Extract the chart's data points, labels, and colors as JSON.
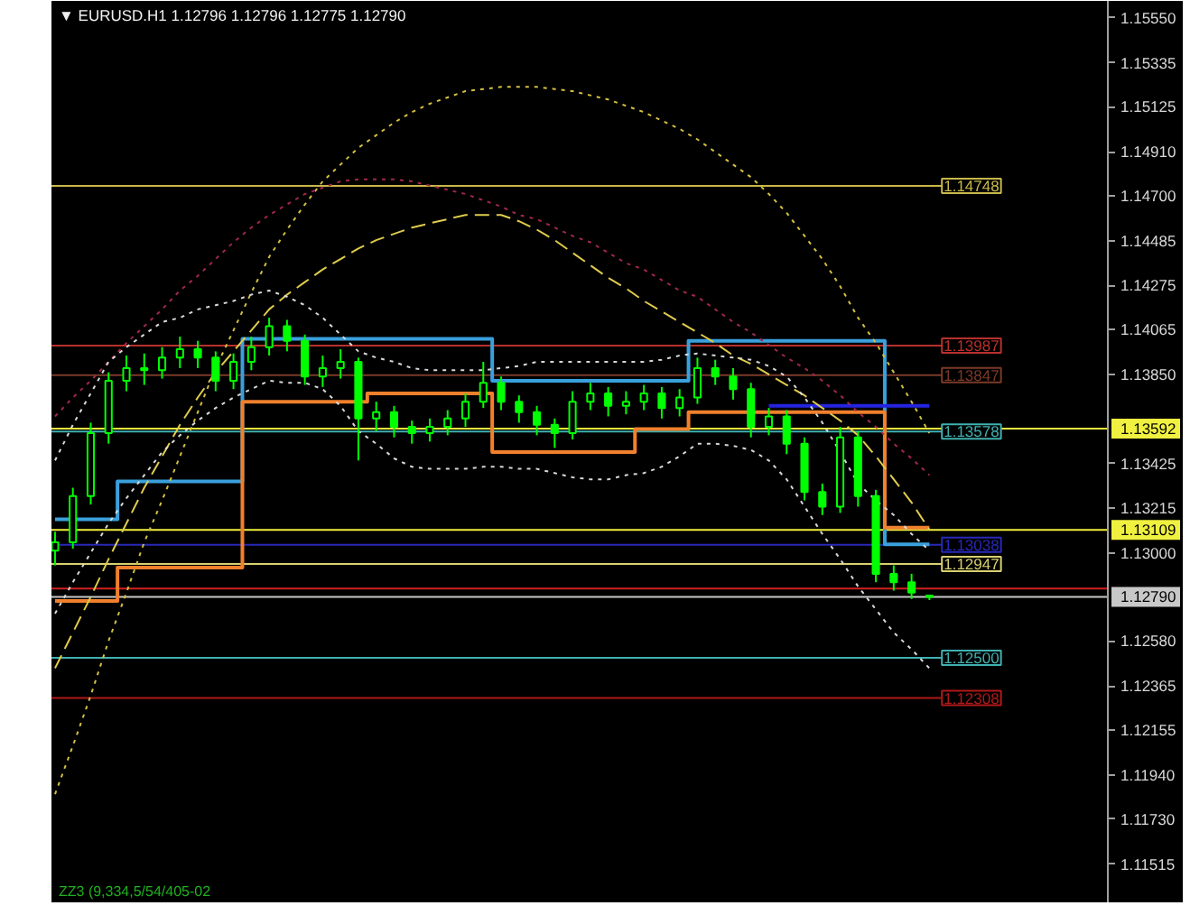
{
  "chart_data": {
    "type": "candlestick",
    "title": "▼ EURUSD.H1  1.12796 1.12796 1.12775 1.12790",
    "color": "#00ff00",
    "categories": [
      null,
      null,
      null,
      null,
      null,
      null,
      null,
      null,
      null,
      null,
      null,
      null,
      null,
      null,
      null,
      null,
      null,
      null,
      null,
      null,
      null,
      null,
      null,
      null,
      null,
      null,
      null,
      null,
      null,
      null,
      null,
      null,
      null,
      null,
      null,
      null,
      null,
      null,
      null,
      null,
      null,
      null,
      null,
      null,
      null,
      null,
      null,
      null,
      null,
      null
    ],
    "ohlc": [
      [
        1.1301,
        1.131,
        1.1294,
        1.1305
      ],
      [
        1.1305,
        1.1331,
        1.1302,
        1.1327
      ],
      [
        1.1327,
        1.1362,
        1.1323,
        1.1357
      ],
      [
        1.1357,
        1.1386,
        1.1352,
        1.1382
      ],
      [
        1.1382,
        1.1394,
        1.1377,
        1.1388
      ],
      [
        1.1388,
        1.1395,
        1.138,
        1.1387
      ],
      [
        1.1387,
        1.1398,
        1.1383,
        1.1393
      ],
      [
        1.1393,
        1.1403,
        1.1388,
        1.1397
      ],
      [
        1.1397,
        1.1401,
        1.1388,
        1.1393
      ],
      [
        1.1393,
        1.1396,
        1.1377,
        1.1382
      ],
      [
        1.1382,
        1.1395,
        1.1378,
        1.1391
      ],
      [
        1.1391,
        1.1403,
        1.1387,
        1.1398
      ],
      [
        1.1398,
        1.1412,
        1.1394,
        1.1408
      ],
      [
        1.1408,
        1.1411,
        1.1396,
        1.1401
      ],
      [
        1.1401,
        1.1404,
        1.138,
        1.1384
      ],
      [
        1.1384,
        1.1394,
        1.1379,
        1.1388
      ],
      [
        1.1388,
        1.1397,
        1.1383,
        1.1391
      ],
      [
        1.1391,
        1.1393,
        1.1344,
        1.1364
      ],
      [
        1.1364,
        1.1372,
        1.1358,
        1.1367
      ],
      [
        1.1367,
        1.137,
        1.1355,
        1.136
      ],
      [
        1.136,
        1.1363,
        1.1352,
        1.1357
      ],
      [
        1.1357,
        1.1364,
        1.1353,
        1.136
      ],
      [
        1.136,
        1.1368,
        1.1356,
        1.1364
      ],
      [
        1.1364,
        1.1376,
        1.136,
        1.1372
      ],
      [
        1.1372,
        1.1391,
        1.1369,
        1.1381
      ],
      [
        1.1381,
        1.1384,
        1.1368,
        1.1372
      ],
      [
        1.1372,
        1.1375,
        1.1362,
        1.1367
      ],
      [
        1.1367,
        1.137,
        1.1356,
        1.1361
      ],
      [
        1.1361,
        1.1364,
        1.135,
        1.1357
      ],
      [
        1.1357,
        1.1377,
        1.1354,
        1.1372
      ],
      [
        1.1372,
        1.1381,
        1.1368,
        1.1376
      ],
      [
        1.1376,
        1.1379,
        1.1365,
        1.137
      ],
      [
        1.137,
        1.1377,
        1.1366,
        1.1372
      ],
      [
        1.1372,
        1.138,
        1.1368,
        1.1376
      ],
      [
        1.1376,
        1.1379,
        1.1364,
        1.1369
      ],
      [
        1.1369,
        1.1378,
        1.1365,
        1.1374
      ],
      [
        1.1374,
        1.1393,
        1.1371,
        1.1388
      ],
      [
        1.1388,
        1.1392,
        1.138,
        1.1384
      ],
      [
        1.1384,
        1.1388,
        1.1373,
        1.1378
      ],
      [
        1.1378,
        1.1381,
        1.1355,
        1.136
      ],
      [
        1.136,
        1.1369,
        1.1356,
        1.1365
      ],
      [
        1.1365,
        1.1368,
        1.1347,
        1.1352
      ],
      [
        1.1352,
        1.1355,
        1.1325,
        1.1329
      ],
      [
        1.1329,
        1.1333,
        1.1318,
        1.1322
      ],
      [
        1.1322,
        1.136,
        1.1319,
        1.1355
      ],
      [
        1.1355,
        1.1358,
        1.1322,
        1.1327
      ],
      [
        1.1327,
        1.133,
        1.1286,
        1.129
      ],
      [
        1.129,
        1.1294,
        1.1282,
        1.1286
      ],
      [
        1.1286,
        1.129,
        1.1278,
        1.1281
      ],
      [
        1.12796,
        1.12796,
        1.12775,
        1.1279
      ]
    ],
    "series": [
      {
        "type": "step",
        "color": "#3aa0dc",
        "values": [
          1.1316,
          1.1316,
          1.1316,
          1.1316,
          1.1334,
          1.1334,
          1.1334,
          1.1334,
          1.1334,
          1.1334,
          1.1334,
          1.1402,
          1.1402,
          1.1402,
          1.1402,
          1.1402,
          1.1402,
          1.1402,
          1.1402,
          1.1402,
          1.1402,
          1.1402,
          1.1402,
          1.1402,
          1.1402,
          1.1382,
          1.1382,
          1.1382,
          1.1382,
          1.1382,
          1.1382,
          1.1382,
          1.1382,
          1.1382,
          1.1382,
          1.1382,
          1.1401,
          1.1401,
          1.1401,
          1.1401,
          1.1401,
          1.1401,
          1.1401,
          1.1401,
          1.1401,
          1.1401,
          1.1401,
          1.1304,
          1.1304,
          1.1304
        ]
      },
      {
        "type": "step",
        "color": "#f0802c",
        "values": [
          1.1277,
          1.1277,
          1.1277,
          1.1277,
          1.1293,
          1.1293,
          1.1293,
          1.1293,
          1.1293,
          1.1293,
          1.1293,
          1.1372,
          1.1372,
          1.1372,
          1.1372,
          1.1372,
          1.1372,
          1.1372,
          1.1376,
          1.1376,
          1.1376,
          1.1376,
          1.1376,
          1.1376,
          1.1376,
          1.1348,
          1.1348,
          1.1348,
          1.1348,
          1.1348,
          1.1348,
          1.1348,
          1.1348,
          1.1359,
          1.1359,
          1.1359,
          1.1367,
          1.1367,
          1.1367,
          1.1367,
          1.1367,
          1.1367,
          1.1367,
          1.1367,
          1.1367,
          1.1367,
          1.1367,
          1.1312,
          1.1312,
          1.1312
        ]
      },
      {
        "type": "line",
        "color": "#2424e0",
        "values": [
          null,
          null,
          null,
          null,
          null,
          null,
          null,
          null,
          null,
          null,
          null,
          null,
          null,
          null,
          null,
          null,
          null,
          null,
          null,
          null,
          null,
          null,
          null,
          null,
          null,
          null,
          null,
          null,
          null,
          null,
          null,
          null,
          null,
          null,
          null,
          null,
          null,
          null,
          null,
          null,
          1.137,
          1.137,
          1.137,
          1.137,
          1.137,
          1.137,
          1.137,
          1.137,
          1.137,
          1.137
        ]
      },
      {
        "type": "line",
        "color": "#e0cc4c",
        "line_style": "dashed",
        "values": [
          1.1245,
          1.1262,
          1.1279,
          1.1297,
          1.1314,
          1.1331,
          1.1346,
          1.1361,
          1.1374,
          1.1386,
          1.1396,
          1.1406,
          1.1416,
          1.1423,
          1.1429,
          1.1435,
          1.144,
          1.1445,
          1.1449,
          1.1452,
          1.1455,
          1.1457,
          1.1459,
          1.1461,
          1.1461,
          1.1461,
          1.1458,
          1.1454,
          1.1449,
          1.1443,
          1.1437,
          1.1431,
          1.1426,
          1.142,
          1.1415,
          1.141,
          1.1405,
          1.14,
          1.1394,
          1.139,
          1.1385,
          1.138,
          1.1375,
          1.1369,
          1.1363,
          1.1356,
          1.1346,
          1.1335,
          1.1324,
          1.1311
        ]
      },
      {
        "type": "line",
        "color": "#d4c040",
        "line_style": "dotted",
        "values": [
          1.1185,
          1.1208,
          1.1232,
          1.1258,
          1.1281,
          1.1305,
          1.1325,
          1.1346,
          1.1367,
          1.1388,
          1.1406,
          1.1424,
          1.1441,
          1.1454,
          1.1466,
          1.1477,
          1.1485,
          1.1493,
          1.1499,
          1.1505,
          1.151,
          1.1514,
          1.1517,
          1.152,
          1.1521,
          1.1522,
          1.1522,
          1.1522,
          1.1521,
          1.152,
          1.1518,
          1.1516,
          1.1513,
          1.151,
          1.1506,
          1.1502,
          1.1497,
          1.1491,
          1.1485,
          1.1479,
          1.1471,
          1.1462,
          1.1451,
          1.144,
          1.1427,
          1.1412,
          1.14,
          1.1386,
          1.1372,
          1.1357
        ]
      },
      {
        "type": "line",
        "color": "#a02848",
        "line_style": "dotted",
        "values": [
          1.1365,
          1.1374,
          1.1382,
          1.1391,
          1.14,
          1.1408,
          1.1416,
          1.1425,
          1.1432,
          1.144,
          1.1448,
          1.1455,
          1.1461,
          1.1466,
          1.1471,
          1.1474,
          1.1477,
          1.1478,
          1.1478,
          1.1478,
          1.1477,
          1.1475,
          1.1473,
          1.1471,
          1.1468,
          1.1465,
          1.1461,
          1.1459,
          1.1455,
          1.1451,
          1.1448,
          1.1443,
          1.1438,
          1.1435,
          1.143,
          1.1425,
          1.1422,
          1.1416,
          1.141,
          1.1405,
          1.1399,
          1.1393,
          1.1388,
          1.1382,
          1.1375,
          1.1367,
          1.136,
          1.1352,
          1.1345,
          1.1337
        ]
      },
      {
        "type": "line",
        "color": "#d8d8d8",
        "line_style": "dotted",
        "values": [
          1.1344,
          1.1361,
          1.1376,
          1.1391,
          1.1398,
          1.1404,
          1.141,
          1.1412,
          1.1416,
          1.1418,
          1.142,
          1.1423,
          1.1425,
          1.1422,
          1.1418,
          1.1412,
          1.1404,
          1.1396,
          1.1393,
          1.1391,
          1.1388,
          1.1387,
          1.1387,
          1.1387,
          1.1387,
          1.1388,
          1.1389,
          1.1391,
          1.1391,
          1.1391,
          1.1391,
          1.1391,
          1.1391,
          1.1391,
          1.1392,
          1.1394,
          1.1395,
          1.1394,
          1.1393,
          1.1392,
          1.1389,
          1.1384,
          1.1374,
          1.1362,
          1.1348,
          1.1333,
          1.1325,
          1.1318,
          1.1309,
          1.1301
        ]
      },
      {
        "type": "line",
        "color": "#d8d8d8",
        "line_style": "dotted",
        "values": [
          1.1271,
          1.1286,
          1.13,
          1.1314,
          1.1326,
          1.1337,
          1.1348,
          1.1356,
          1.1363,
          1.1369,
          1.1374,
          1.1378,
          1.1382,
          1.1381,
          1.1381,
          1.1378,
          1.137,
          1.1358,
          1.1352,
          1.1345,
          1.1341,
          1.134,
          1.134,
          1.134,
          1.1341,
          1.1341,
          1.134,
          1.134,
          1.1338,
          1.1336,
          1.1335,
          1.1335,
          1.1337,
          1.1338,
          1.1341,
          1.1346,
          1.1352,
          1.1352,
          1.1351,
          1.1349,
          1.1344,
          1.1335,
          1.1322,
          1.1309,
          1.1297,
          1.1284,
          1.1273,
          1.1262,
          1.1254,
          1.1245
        ]
      }
    ],
    "ref_lines": [
      {
        "axis": "y",
        "value": 1.14748,
        "label": "1.14748",
        "color": "#c8b84a"
      },
      {
        "axis": "y",
        "value": 1.13987,
        "label": "1.13987",
        "color": "#b8302c"
      },
      {
        "axis": "y",
        "value": 1.13847,
        "label": "1.13847",
        "color": "#7a3a28"
      },
      {
        "axis": "y",
        "value": 1.13578,
        "label": "1.13578",
        "color": "#40b0b0"
      },
      {
        "axis": "y",
        "value": 1.13592,
        "color": "#f0f040"
      },
      {
        "axis": "y",
        "value": 1.13109,
        "color": "#f0f040"
      },
      {
        "axis": "y",
        "value": 1.13038,
        "label": "1.13038",
        "color": "#2828b8"
      },
      {
        "axis": "y",
        "value": 1.12947,
        "label": "1.12947",
        "color": "#d8d070"
      },
      {
        "axis": "y",
        "value": 1.1283,
        "color": "#d02020"
      },
      {
        "axis": "y",
        "value": 1.1279,
        "color": "#c8c8c8"
      },
      {
        "axis": "y",
        "value": 1.125,
        "label": "1.12500",
        "color": "#40b0b0"
      },
      {
        "axis": "y",
        "value": 1.12308,
        "label": "1.12308",
        "color": "#b01818"
      }
    ],
    "annotations": [
      "ZZ3 (9,334,5/54/405-02"
    ],
    "ylim": [
      1.1133,
      1.1563
    ],
    "yticks": [
      {
        "value": 1.1555,
        "label": "1.15550"
      },
      1.15335,
      1.15125,
      {
        "value": 1.1491,
        "label": "1.14910"
      },
      {
        "value": 1.147,
        "label": "1.14700"
      },
      1.14485,
      1.14275,
      1.14065,
      {
        "value": 1.1385,
        "label": "1.13850"
      },
      1.13592,
      1.13425,
      1.13215,
      1.13109,
      {
        "value": 1.13,
        "label": "1.13000"
      },
      {
        "value": 1.1279,
        "label": "1.12790"
      },
      {
        "value": 1.1258,
        "label": "1.12580"
      },
      1.12365,
      1.12155,
      {
        "value": 1.1194,
        "label": "1.11940"
      },
      {
        "value": 1.1173,
        "label": "1.11730"
      },
      1.11515
    ],
    "tick_labels": "y",
    "grid": false
  }
}
